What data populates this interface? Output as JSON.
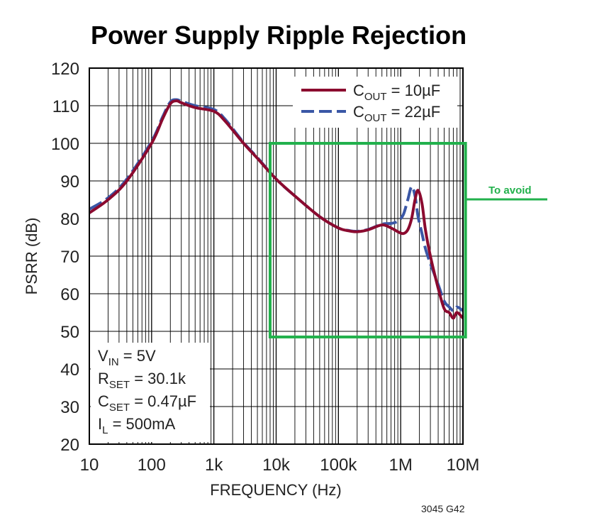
{
  "chart_data": {
    "type": "line",
    "title": "Power Supply Ripple Rejection",
    "xlabel": "FREQUENCY (Hz)",
    "ylabel": "PSRR (dB)",
    "x_scale": "log",
    "xlim": [
      10,
      10000000
    ],
    "ylim": [
      20,
      120
    ],
    "grid": true,
    "x_tick_labels": [
      "10",
      "100",
      "1k",
      "10k",
      "100k",
      "1M",
      "10M"
    ],
    "x_tick_values": [
      10,
      100,
      1000,
      10000,
      100000,
      1000000,
      10000000
    ],
    "y_tick_values": [
      20,
      30,
      40,
      50,
      60,
      70,
      80,
      90,
      100,
      110,
      120
    ],
    "legend": {
      "placement": "top-right",
      "entries": [
        {
          "main": "C",
          "sub": "OUT",
          "rest": " = 10µF"
        },
        {
          "main": "C",
          "sub": "OUT",
          "rest": " = 22µF"
        }
      ]
    },
    "conditions": [
      {
        "main": "V",
        "sub": "IN",
        "rest": " = 5V"
      },
      {
        "main": "R",
        "sub": "SET",
        "rest": " = 30.1k"
      },
      {
        "main": "C",
        "sub": "SET",
        "rest": " = 0.47µF"
      },
      {
        "main": "I",
        "sub": "L",
        "rest": " = 500mA"
      }
    ],
    "figure_code": "3045 G42",
    "series": [
      {
        "color": "#8b0a2f",
        "style": "solid",
        "x": [
          10,
          20,
          40,
          100,
          150,
          200,
          250,
          300,
          500,
          1000,
          1500,
          3000,
          5000,
          10000,
          20000,
          50000,
          100000,
          150000,
          200000,
          300000,
          500000,
          700000,
          900000,
          1100000,
          1300000,
          1500000,
          1700000,
          1900000,
          2200000,
          2500000,
          3000000,
          4000000,
          5000000,
          6000000,
          7000000,
          8000000,
          10000000
        ],
        "y": [
          81.5,
          85,
          90,
          100,
          106.5,
          110.5,
          111.3,
          110.8,
          109.5,
          108.5,
          106,
          100,
          96,
          90.5,
          86,
          80.5,
          77.5,
          76.7,
          76.5,
          77,
          78.3,
          77.5,
          76.5,
          76,
          77,
          80,
          85,
          87.5,
          84,
          77,
          70,
          61.5,
          56,
          55,
          53.5,
          55,
          53.5
        ]
      },
      {
        "color": "#3a57a6",
        "style": "dashed",
        "x": [
          10,
          20,
          40,
          100,
          150,
          200,
          250,
          300,
          500,
          1000,
          1500,
          3000,
          5000,
          10000,
          20000,
          50000,
          100000,
          150000,
          200000,
          300000,
          500000,
          700000,
          900000,
          1100000,
          1300000,
          1500000,
          1700000,
          1900000,
          2200000,
          2500000,
          3000000,
          4000000,
          5000000,
          6000000,
          7000000,
          8000000,
          10000000
        ],
        "y": [
          82.5,
          85.5,
          90.5,
          100.5,
          107,
          111,
          111.6,
          111.2,
          110,
          109,
          106.5,
          100.2,
          96.2,
          90.5,
          86,
          80.5,
          77.5,
          76.8,
          76.6,
          77.1,
          78.5,
          78.7,
          79.3,
          81,
          85,
          88.5,
          86,
          80.5,
          76,
          72,
          68,
          62.5,
          58,
          56.5,
          55.5,
          56.5,
          55.5
        ]
      }
    ]
  },
  "annotation": {
    "label": "To avoid",
    "color": "#22b14c",
    "x_range": [
      8000,
      11000000
    ],
    "y_range": [
      48.5,
      100
    ]
  }
}
